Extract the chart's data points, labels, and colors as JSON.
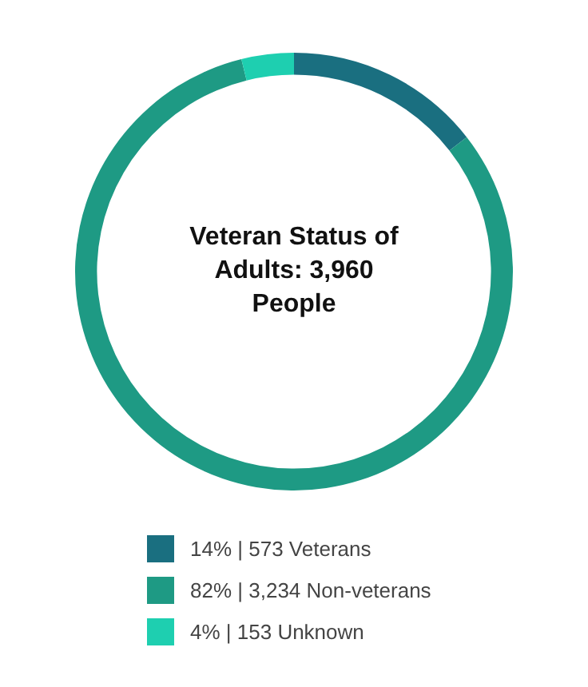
{
  "chart_data": {
    "type": "donut",
    "title": "Veteran Status of Adults: 3,960 People",
    "categories": [
      "14% | 573 Veterans",
      "82% | 3,234 Non-veterans",
      "4% | 153 Unknown"
    ],
    "values": [
      573,
      3234,
      153
    ],
    "colors": [
      "#1a6f80",
      "#1e9a84",
      "#1ecfb0"
    ],
    "legend": "bottom"
  }
}
